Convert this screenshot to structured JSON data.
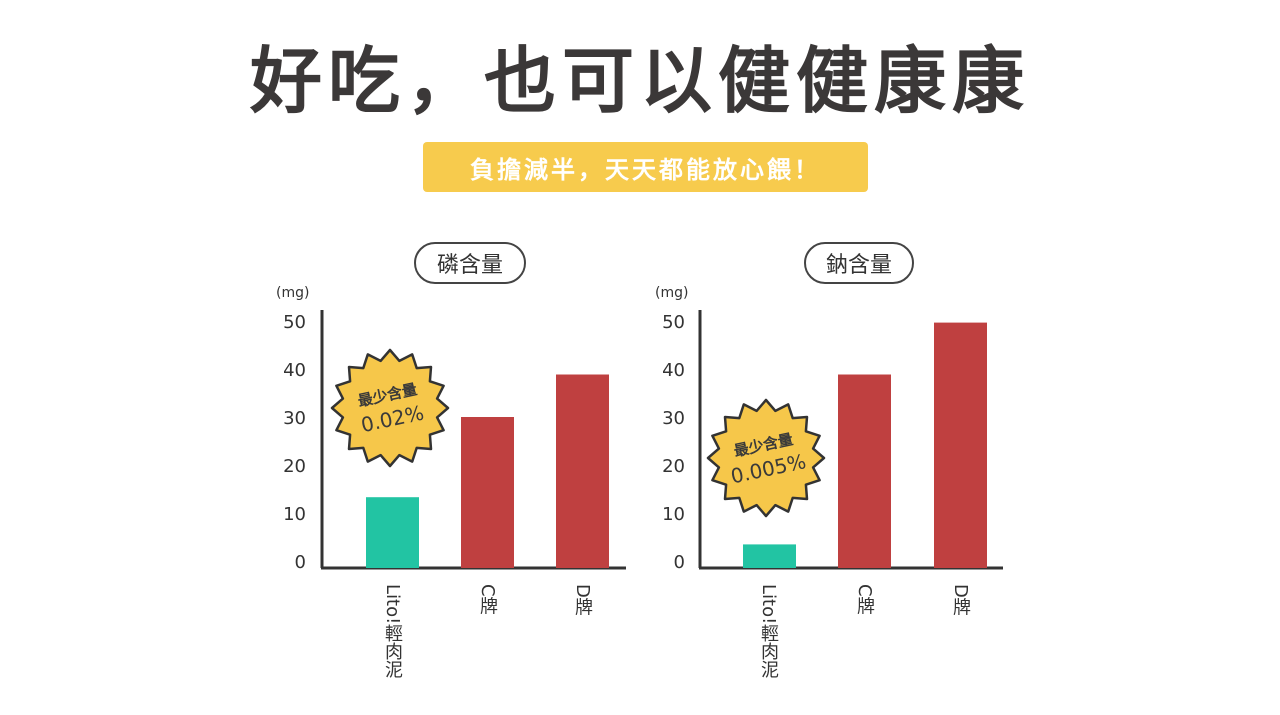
{
  "header": {
    "title": "好吃，也可以健健康康",
    "subtitle": "負擔減半，天天都能放心餵！"
  },
  "colors": {
    "lito": "#22c4a3",
    "competitor": "#bf4040",
    "banner": "#f7cb4d",
    "badge": "#f6c74a",
    "axis": "#333333"
  },
  "chart_data": [
    {
      "type": "bar",
      "title": "磷含量",
      "ylabel": "(mg)",
      "ylim": [
        0,
        50
      ],
      "yticks": [
        "0",
        "10",
        "20",
        "30",
        "40",
        "50"
      ],
      "categories": [
        "Lito!輕肉泥",
        "C牌",
        "D牌"
      ],
      "values": [
        15,
        32,
        41
      ],
      "badge": {
        "line1": "最少含量",
        "line2": "0.02%"
      }
    },
    {
      "type": "bar",
      "title": "鈉含量",
      "ylabel": "(mg)",
      "ylim": [
        0,
        50
      ],
      "yticks": [
        "0",
        "10",
        "20",
        "30",
        "40",
        "50"
      ],
      "categories": [
        "Lito!輕肉泥",
        "C牌",
        "D牌"
      ],
      "values": [
        5,
        41,
        52
      ],
      "badge": {
        "line1": "最少含量",
        "line2": "0.005%"
      }
    }
  ]
}
